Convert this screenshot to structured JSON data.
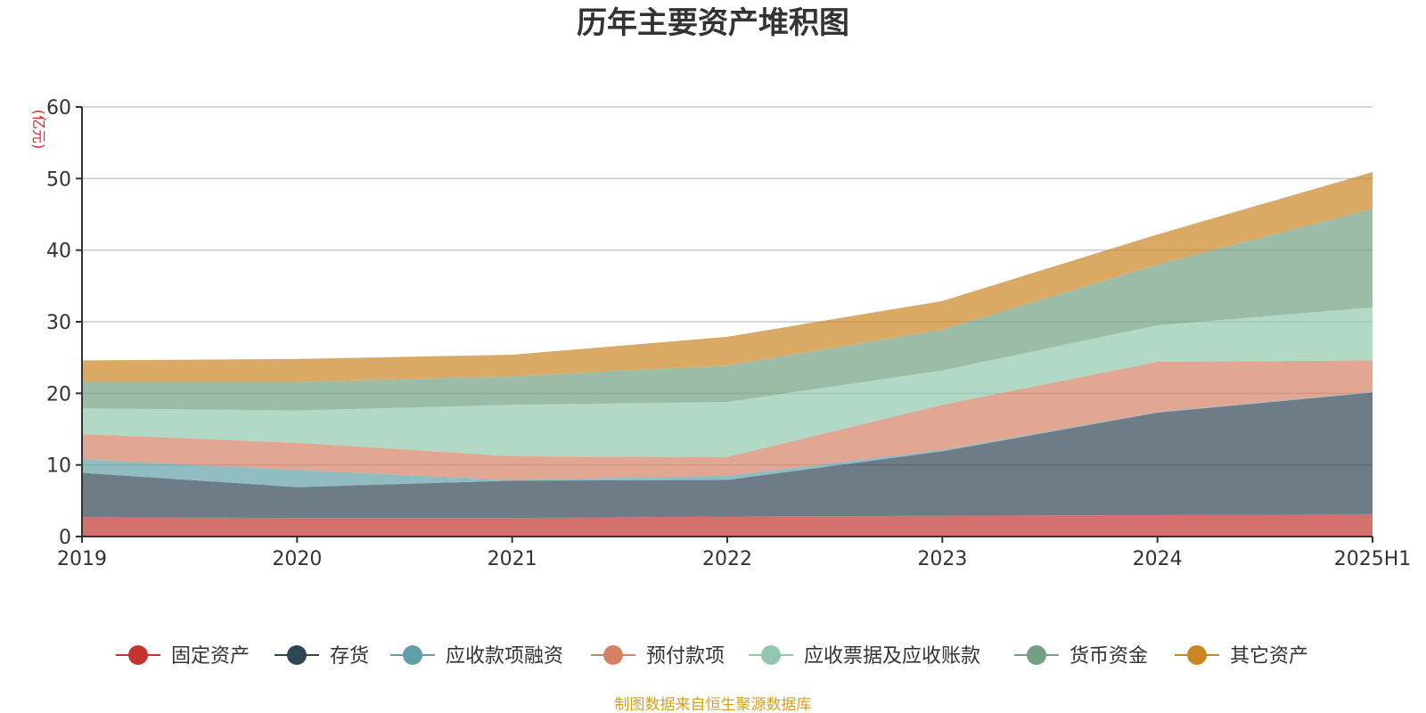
{
  "chart_data": {
    "type": "area",
    "stacked": true,
    "title": "历年主要资产堆积图",
    "unit": "(亿元)",
    "categories": [
      "2019",
      "2020",
      "2021",
      "2022",
      "2023",
      "2024",
      "2025H1"
    ],
    "yticks": [
      "0",
      "10",
      "20",
      "30",
      "40",
      "50",
      "60"
    ],
    "ylim": [
      0,
      60
    ],
    "grid": true,
    "legend_position": "bottom",
    "series": [
      {
        "name": "固定资产",
        "color": "#c23531",
        "values": [
          2.7,
          2.6,
          2.6,
          2.8,
          2.9,
          3.0,
          3.1
        ]
      },
      {
        "name": "存货",
        "color": "#2f4554",
        "values": [
          6.2,
          4.3,
          5.2,
          5.1,
          9.0,
          14.3,
          17.0
        ]
      },
      {
        "name": "应收款项融资",
        "color": "#61a0a8",
        "values": [
          1.9,
          2.4,
          0.1,
          0.6,
          0.2,
          0.1,
          0.1
        ]
      },
      {
        "name": "预付款项",
        "color": "#d48265",
        "values": [
          3.5,
          3.8,
          3.3,
          2.6,
          6.3,
          7.0,
          4.4
        ]
      },
      {
        "name": "应收票据及应收账款",
        "color": "#91c7ae",
        "values": [
          3.6,
          4.5,
          7.2,
          7.7,
          4.8,
          5.1,
          7.4
        ]
      },
      {
        "name": "货币资金",
        "color": "#749f83",
        "values": [
          3.7,
          4.0,
          4.0,
          5.1,
          5.7,
          8.5,
          13.8
        ]
      },
      {
        "name": "其它资产",
        "color": "#ca8622",
        "values": [
          3.0,
          3.2,
          3.0,
          4.0,
          4.0,
          4.2,
          5.1
        ]
      }
    ],
    "source_note": "制图数据来自恒生聚源数据库"
  }
}
